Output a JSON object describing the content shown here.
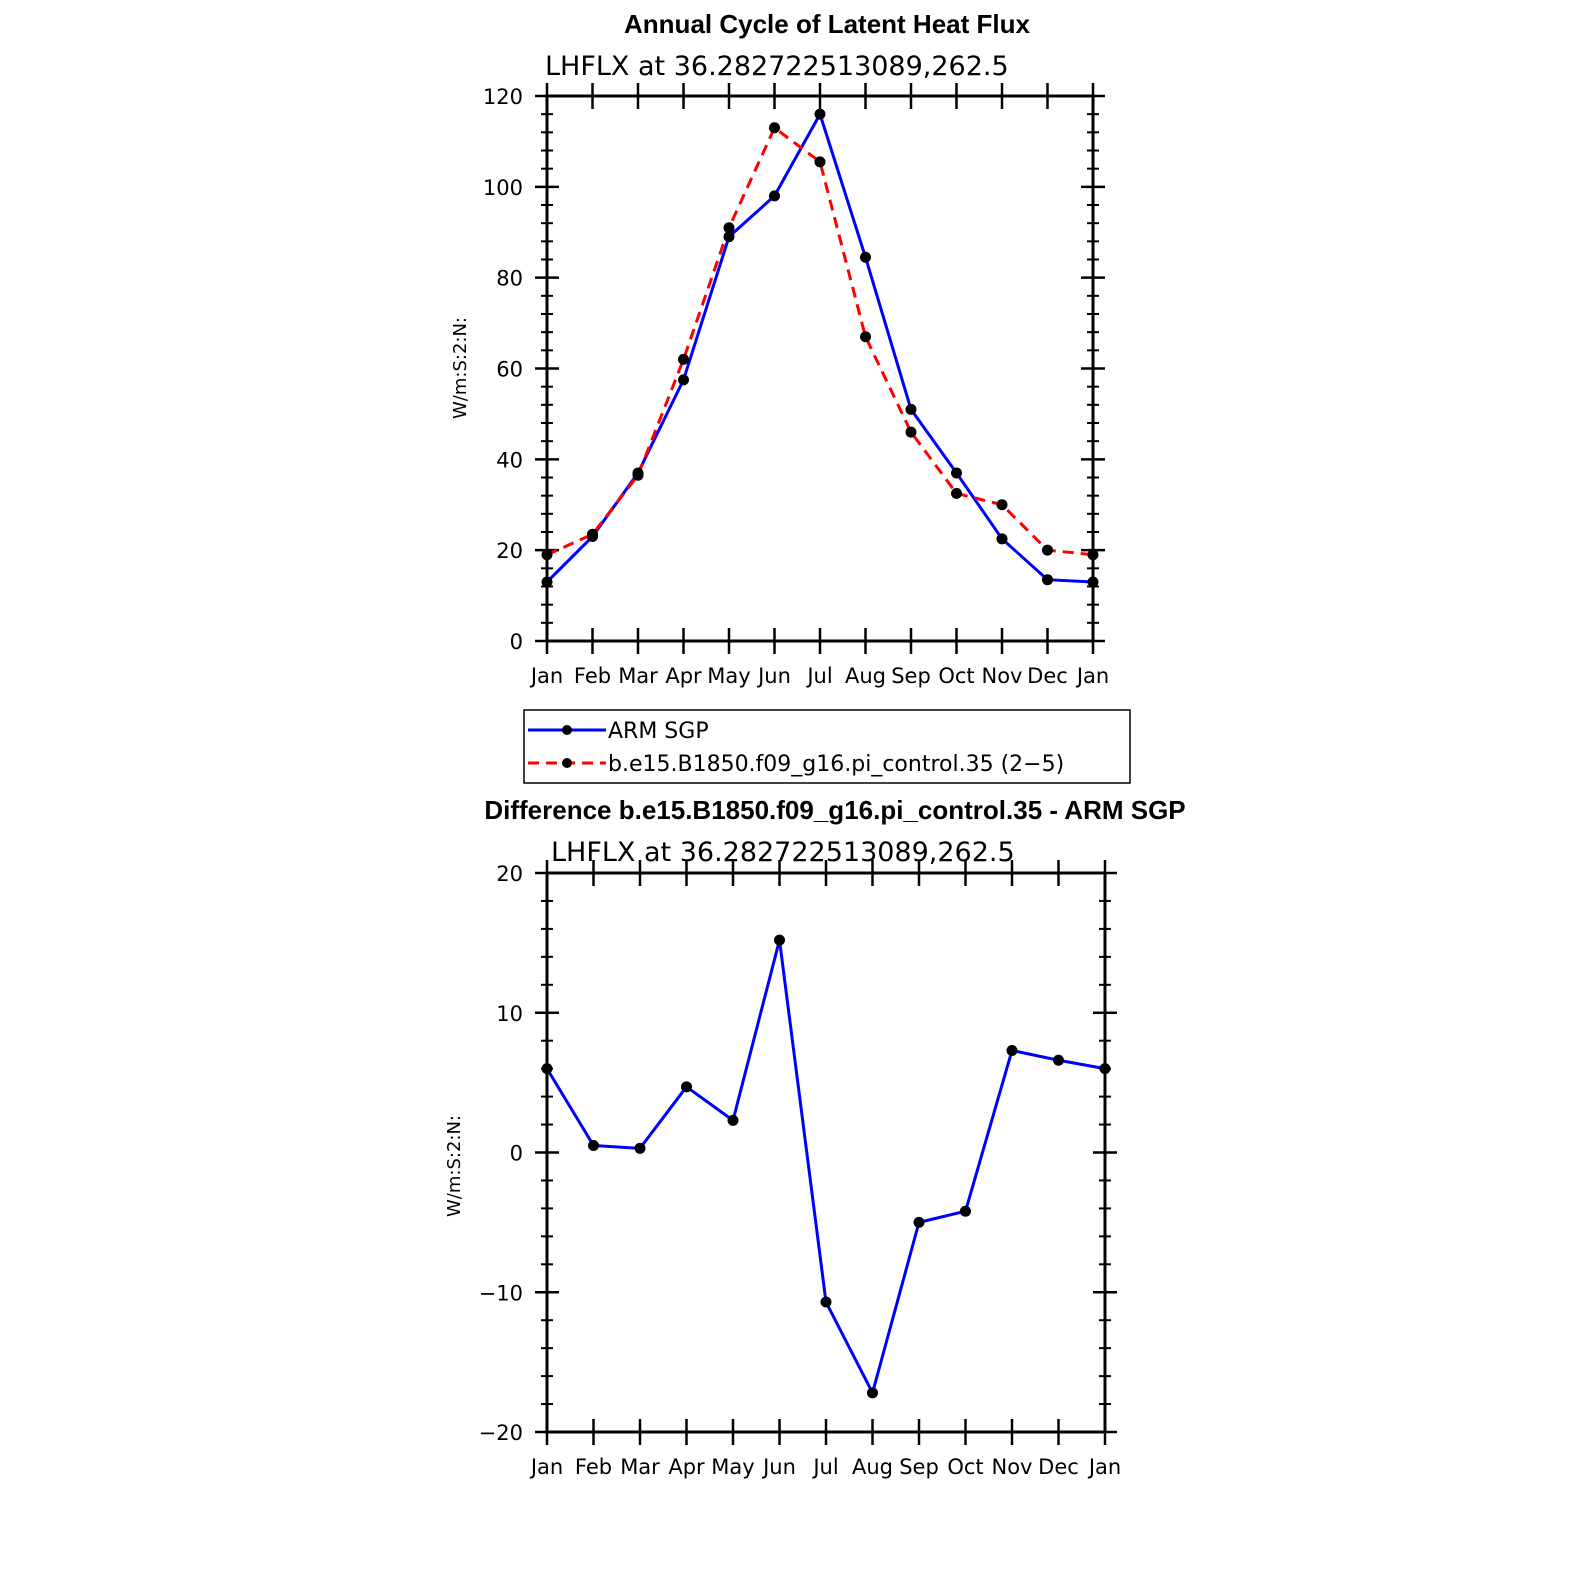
{
  "chart_data": [
    {
      "type": "line",
      "title": "Annual Cycle of Latent Heat Flux",
      "subtitle": "LHFLX at 36.282722513089,262.5",
      "ylabel": "W/m:S:2:N:",
      "categories": [
        "Jan",
        "Feb",
        "Mar",
        "Apr",
        "May",
        "Jun",
        "Jul",
        "Aug",
        "Sep",
        "Oct",
        "Nov",
        "Dec",
        "Jan"
      ],
      "ylim": [
        0,
        120
      ],
      "yticks": [
        0,
        20,
        40,
        60,
        80,
        100,
        120
      ],
      "y_tick_labels": [
        "0",
        "20",
        "40",
        "60",
        "80",
        "100",
        "120"
      ],
      "series": [
        {
          "name": "ARM SGP",
          "color": "#0000ff",
          "dash": "solid",
          "values": [
            13,
            23,
            37,
            57.5,
            89,
            98,
            116,
            84.5,
            51,
            37,
            22.5,
            13.5,
            13
          ]
        },
        {
          "name": "b.e15.B1850.f09_g16.pi_control.35 (2−5)",
          "color": "#ff0000",
          "dash": "dashed",
          "values": [
            19,
            23.5,
            36.5,
            62,
            91,
            113,
            105.5,
            67,
            46,
            32.5,
            30,
            20,
            19
          ]
        }
      ],
      "legend": "below"
    },
    {
      "type": "line",
      "title": "Difference b.e15.B1850.f09_g16.pi_control.35 - ARM SGP",
      "subtitle": "LHFLX at 36.282722513089,262.5",
      "ylabel": "W/m:S:2:N:",
      "categories": [
        "Jan",
        "Feb",
        "Mar",
        "Apr",
        "May",
        "Jun",
        "Jul",
        "Aug",
        "Sep",
        "Oct",
        "Nov",
        "Dec",
        "Jan"
      ],
      "ylim": [
        -20,
        20
      ],
      "yticks": [
        -20,
        -10,
        0,
        10,
        20
      ],
      "y_tick_labels": [
        "−20",
        "−10",
        "0",
        "10",
        "20"
      ],
      "series": [
        {
          "color": "#0000ff",
          "dash": "solid",
          "values": [
            6,
            0.5,
            0.3,
            4.7,
            2.3,
            15.2,
            -10.7,
            -17.2,
            -5,
            -4.2,
            7.3,
            6.6,
            6
          ]
        }
      ]
    }
  ]
}
